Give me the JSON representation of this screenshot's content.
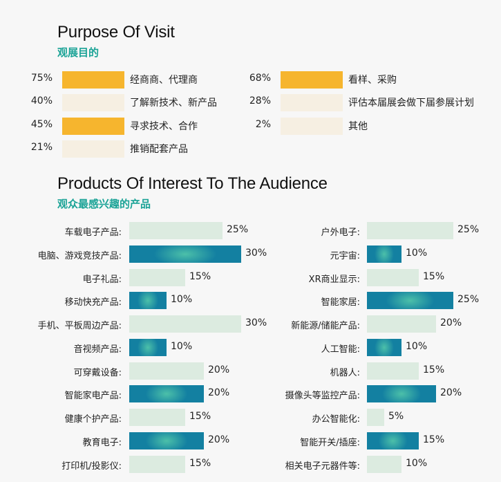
{
  "visit": {
    "title": "Purpose Of Visit",
    "subtitle": "观展目的",
    "colors": {
      "high": "#f6b52e",
      "low": "#f6efe2"
    },
    "items": [
      {
        "label": "经商商、代理商",
        "value": 75,
        "percent": "75%",
        "column": "left"
      },
      {
        "label": "了解新技术、新产品",
        "value": 40,
        "percent": "40%",
        "column": "left"
      },
      {
        "label": "寻求技术、合作",
        "value": 45,
        "percent": "45%",
        "column": "left"
      },
      {
        "label": "推销配套产品",
        "value": 21,
        "percent": "21%",
        "column": "left"
      },
      {
        "label": "看样、采购",
        "value": 68,
        "percent": "68%",
        "column": "right"
      },
      {
        "label": "评估本届展会做下届参展计划",
        "value": 28,
        "percent": "28%",
        "column": "right"
      },
      {
        "label": "其他",
        "value": 2,
        "percent": "2%",
        "column": "right"
      }
    ]
  },
  "products": {
    "title": "Products Of Interest To The Audience",
    "subtitle": "观众最感兴趣的产品",
    "colors": {
      "light": "#dcebe0",
      "dark": "#1380a1",
      "glow": "#4cc0a9"
    }
  },
  "chart_data": {
    "type": "bar",
    "orientation": "horizontal",
    "unit": "%",
    "groups": [
      {
        "categories": [
          "车载电子产品:",
          "电脑、游戏竞技产品:",
          "电子礼品:",
          "移动快充产品:",
          "手机、平板周边产品:",
          "音视频产品:",
          "可穿戴设备:",
          "智能家电产品:",
          "健康个护产品:",
          "教育电子:",
          "打印机/投影仪:"
        ],
        "values": [
          25,
          30,
          15,
          10,
          30,
          10,
          20,
          20,
          15,
          20,
          15
        ],
        "value_labels": [
          "25%",
          "30%",
          "15%",
          "10%",
          "30%",
          "10%",
          "20%",
          "20%",
          "15%",
          "20%",
          "15%"
        ],
        "style": [
          "light",
          "dark",
          "light",
          "dark",
          "light",
          "dark",
          "light",
          "dark",
          "light",
          "dark",
          "light"
        ]
      },
      {
        "categories": [
          "户外电子:",
          "元宇宙:",
          "XR商业显示:",
          "智能家居:",
          "新能源/储能产品:",
          "人工智能:",
          "机器人:",
          "摄像头等监控产品:",
          "办公智能化:",
          "智能开关/插座:",
          "相关电子元器件等:"
        ],
        "values": [
          25,
          10,
          15,
          25,
          20,
          10,
          15,
          20,
          5,
          15,
          10
        ],
        "value_labels": [
          "25%",
          "10%",
          "15%",
          "25%",
          "20%",
          "10%",
          "15%",
          "20%",
          "5%",
          "15%",
          "10%"
        ],
        "style": [
          "light",
          "dark",
          "light",
          "dark",
          "light",
          "dark",
          "light",
          "dark",
          "light",
          "dark",
          "light"
        ]
      }
    ]
  }
}
